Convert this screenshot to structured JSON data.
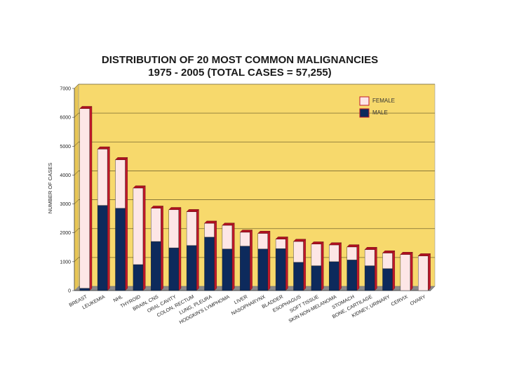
{
  "chart_data": {
    "type": "bar",
    "stacked": true,
    "title": "DISTRIBUTION OF 20 MOST COMMON MALIGNANCIES",
    "subtitle": "1975 - 2005 (TOTAL CASES = 57,255)",
    "ylabel": "NUMBER OF CASES",
    "xlabel": "",
    "ylim": [
      0,
      7000
    ],
    "yticks": [
      "0",
      "1000",
      "2000",
      "3000",
      "4000",
      "5000",
      "6000",
      "7000"
    ],
    "grid": true,
    "legend_position": "top-right",
    "categories": [
      "BREAST",
      "LEUKEMIA",
      "NHL",
      "THYROID",
      "BRAIN, CNS",
      "ORAL CAVITY",
      "COLON, RECTUM",
      "LUNG, PLEURA",
      "HODGKIN'S LYMPHOMA",
      "LIVER",
      "NASOPHARYNX",
      "BLADDER",
      "ESOPHAGUS",
      "SOFT TISSUE",
      "SKIN NON-MELANOMA",
      "STOMACH",
      "BONE, CARTILAGE",
      "KIDNEY, URINARY",
      "CERVIX",
      "OVARY"
    ],
    "series": [
      {
        "name": "MALE",
        "color": "#0d2a5c",
        "values": [
          80,
          2950,
          2850,
          900,
          1700,
          1480,
          1560,
          1850,
          1440,
          1540,
          1440,
          1450,
          980,
          860,
          1000,
          1060,
          860,
          760,
          0,
          0
        ]
      },
      {
        "name": "FEMALE",
        "color": "#fde6e6",
        "values": [
          6220,
          1950,
          1680,
          2650,
          1150,
          1320,
          1170,
          480,
          820,
          480,
          540,
          330,
          720,
          750,
          580,
          450,
          560,
          540,
          1250,
          1200
        ]
      }
    ],
    "colors": {
      "background": "#f7d96c",
      "edge": "#c0182a",
      "top": "#b01020",
      "floor": "#8a8a8a"
    }
  }
}
